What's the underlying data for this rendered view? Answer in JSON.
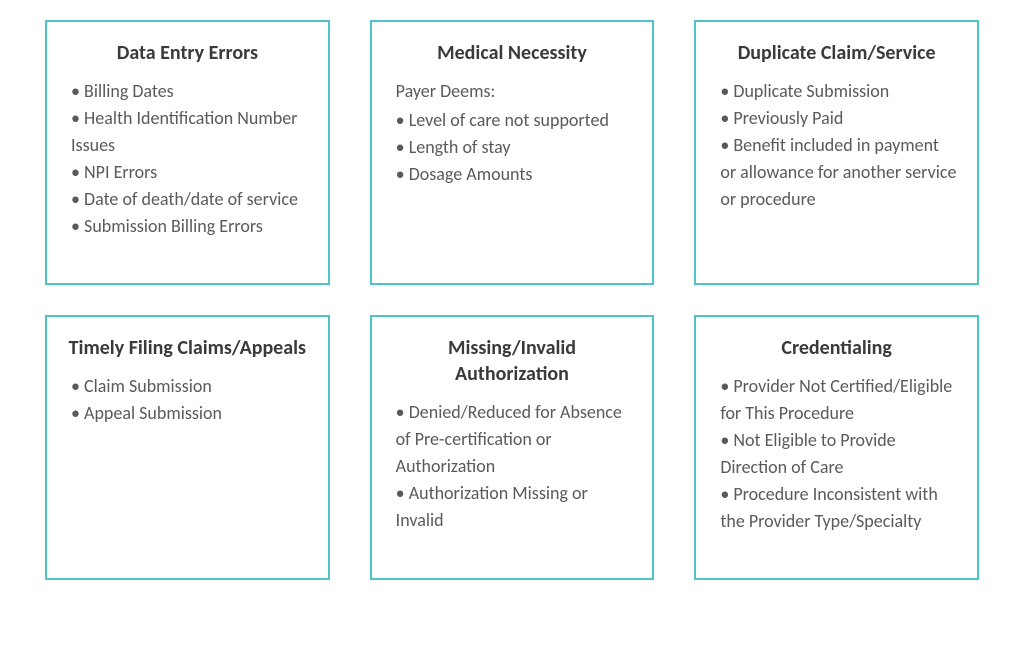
{
  "layout": {
    "columns": 3,
    "rows": 2,
    "gap_h": 40,
    "gap_v": 30
  },
  "styling": {
    "border_color": "#4fc4c4",
    "border_width": 2,
    "title_color": "#3a3a3a",
    "title_fontsize": 20,
    "title_fontweight": 600,
    "body_color": "#5a5a5a",
    "body_fontsize": 18,
    "background_color": "#ffffff",
    "card_min_height": 265
  },
  "cards": [
    {
      "title": "Data Entry Errors",
      "prefix": "",
      "items": [
        "Billing Dates",
        "Health Identification Number Issues",
        "NPI Errors",
        "Date of death/date of service",
        "Submission Billing Errors"
      ]
    },
    {
      "title": "Medical Necessity",
      "prefix": "Payer Deems:",
      "items": [
        "Level of care not supported",
        "Length of stay",
        "Dosage Amounts"
      ]
    },
    {
      "title": "Duplicate Claim/Service",
      "prefix": "",
      "items": [
        "Duplicate Submission",
        "Previously Paid",
        "Benefit included in payment or allowance for another service or procedure"
      ]
    },
    {
      "title": "Timely Filing Claims/Appeals",
      "prefix": "",
      "items": [
        "Claim Submission",
        "Appeal Submission"
      ]
    },
    {
      "title": "Missing/Invalid Authorization",
      "prefix": "",
      "items": [
        "Denied/Reduced for Absence of Pre-certification or Authorization",
        "Authorization Missing or Invalid"
      ]
    },
    {
      "title": "Credentialing",
      "prefix": "",
      "items": [
        "Provider Not Certified/Eligible for This Procedure",
        "Not Eligible to Provide Direction of Care",
        "Procedure Inconsistent with the Provider Type/Specialty"
      ]
    }
  ]
}
